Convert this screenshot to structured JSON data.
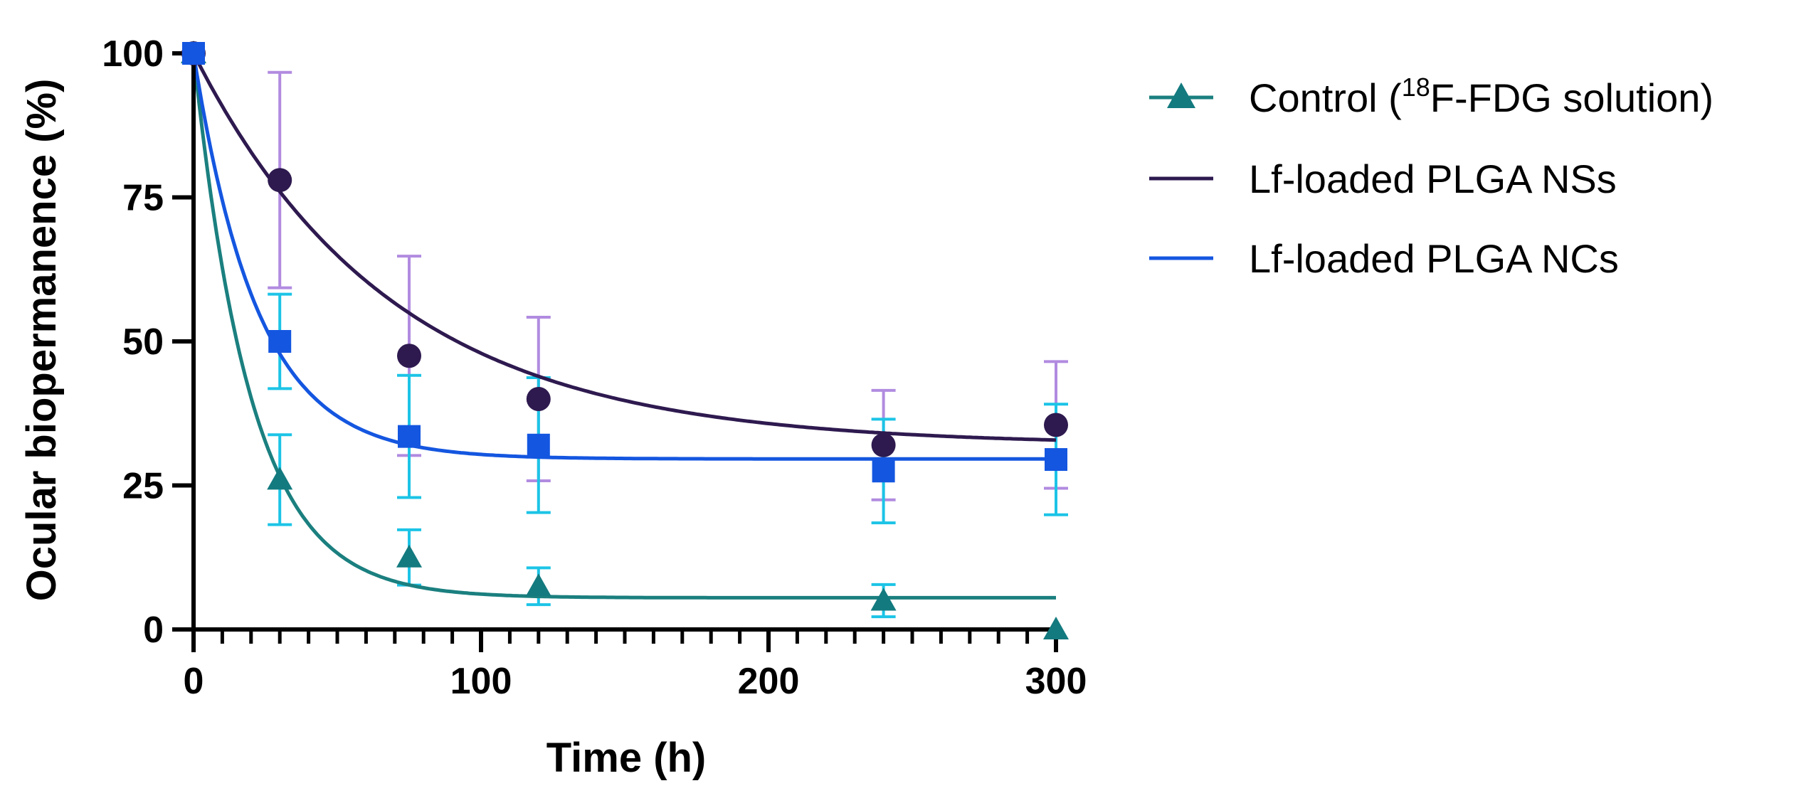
{
  "chart_data": {
    "type": "scatter",
    "title": "",
    "xlabel": "Time (h)",
    "ylabel": "Ocular biopermanence (%)",
    "xlim": [
      0,
      300
    ],
    "ylim": [
      0,
      100
    ],
    "x_ticks": [
      "0",
      "100",
      "200",
      "300"
    ],
    "y_ticks": [
      "0",
      "25",
      "50",
      "75",
      "100"
    ],
    "x_minor_step": 10,
    "legend_position": "right",
    "series": [
      {
        "name": "Control",
        "legend_label": "Control (",
        "legend_sup": "18",
        "legend_tail": "F-FDG solution)",
        "marker": "triangle",
        "marker_color": "#137a7f",
        "line_color": "#1b7f7f",
        "error_color": "#1cc4e6",
        "x": [
          0,
          30,
          75,
          120,
          240,
          300
        ],
        "y": [
          100,
          26,
          12.5,
          7.5,
          5,
          0
        ],
        "err": [
          0,
          7.8,
          4.8,
          3.2,
          2.8,
          0
        ],
        "fit": {
          "y0": 100,
          "plateau": 5.5,
          "k": 0.05
        }
      },
      {
        "name": "Lf-loaded PLGA NSs",
        "legend_label": "Lf-loaded PLGA NSs",
        "marker": "circle",
        "marker_color": "#2e1a4f",
        "line_color": "#2e1a4f",
        "error_color": "#b18be0",
        "x": [
          0,
          30,
          75,
          120,
          240,
          300
        ],
        "y": [
          100,
          78,
          47.5,
          40,
          32,
          35.5
        ],
        "err": [
          0,
          18.7,
          17.3,
          14.2,
          9.5,
          11
        ],
        "fit": {
          "y0": 100,
          "plateau": 32,
          "k": 0.0145
        }
      },
      {
        "name": "Lf-loaded PLGA NCs",
        "legend_label": "Lf-loaded PLGA NCs",
        "marker": "square",
        "marker_color": "#1456e0",
        "line_color": "#1456e0",
        "error_color": "#1cc4e6",
        "x": [
          0,
          30,
          75,
          120,
          240,
          300
        ],
        "y": [
          100,
          50,
          33.5,
          32,
          27.5,
          29.5
        ],
        "err": [
          0,
          8.2,
          10.6,
          11.7,
          9,
          9.6
        ],
        "fit": {
          "y0": 100,
          "plateau": 29.6,
          "k": 0.045
        }
      }
    ]
  }
}
